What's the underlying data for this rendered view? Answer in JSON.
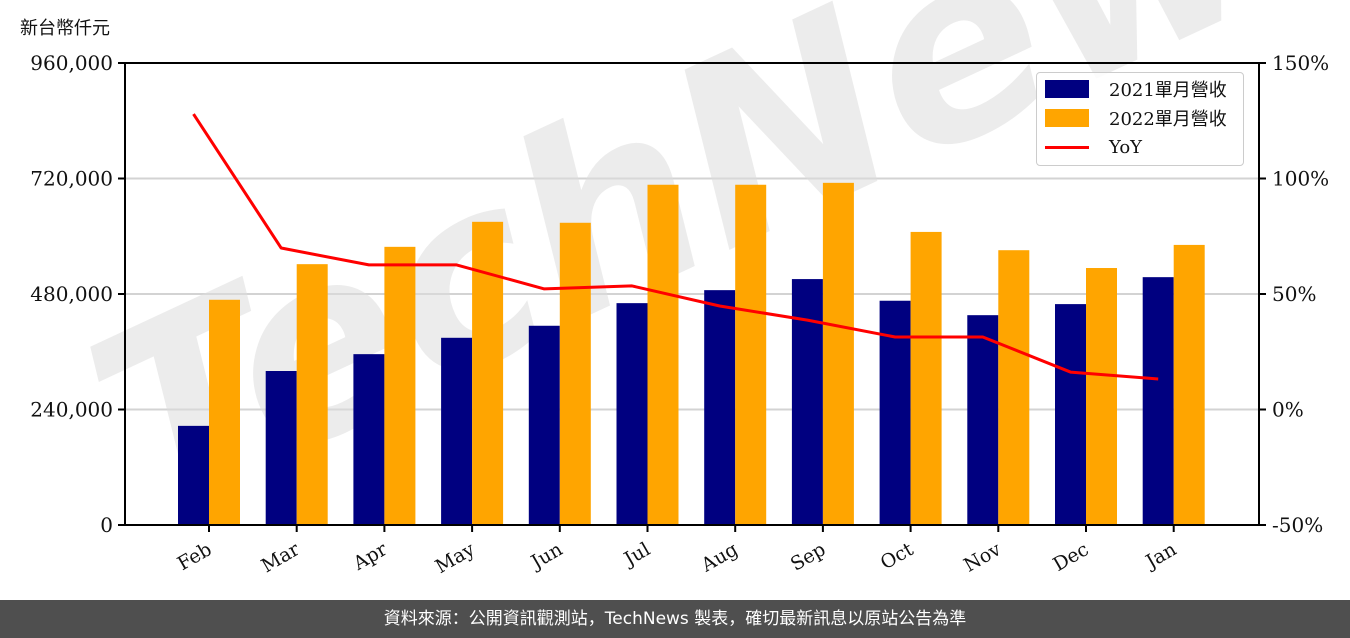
{
  "unit_label": "新台幣仟元",
  "footer": "資料來源：公開資訊觀測站，TechNews 製表，確切最新訊息以原站公告為準",
  "watermark": "TechNews",
  "legend": {
    "items": [
      {
        "label": "2021單月營收",
        "color": "#000080",
        "kind": "bar"
      },
      {
        "label": "2022單月營收",
        "color": "#FFA500",
        "kind": "bar"
      },
      {
        "label": "YoY",
        "color": "#FF0000",
        "kind": "line"
      }
    ]
  },
  "chart_data": {
    "type": "bar",
    "title": "",
    "xlabel": "",
    "ylabel": "新台幣仟元",
    "y2label": "",
    "categories": [
      "Feb",
      "Mar",
      "Apr",
      "May",
      "Jun",
      "Jul",
      "Aug",
      "Sep",
      "Oct",
      "Nov",
      "Dec",
      "Jan"
    ],
    "series": [
      {
        "name": "2021單月營收",
        "type": "bar",
        "axis": "left",
        "color": "#000080",
        "values": [
          206000,
          320000,
          355000,
          389000,
          414000,
          461000,
          488000,
          511000,
          466000,
          436000,
          459000,
          515000
        ]
      },
      {
        "name": "2022單月營收",
        "type": "bar",
        "axis": "left",
        "color": "#FFA500",
        "values": [
          468000,
          542000,
          578000,
          630000,
          628000,
          707000,
          707000,
          711000,
          609000,
          571000,
          534000,
          582000
        ]
      },
      {
        "name": "YoY",
        "type": "line",
        "axis": "right",
        "color": "#FF0000",
        "values": [
          127.9,
          69.9,
          62.6,
          62.6,
          52.2,
          53.5,
          44.8,
          38.7,
          31.4,
          31.4,
          16.2,
          13.2
        ]
      }
    ],
    "ylim": [
      0,
      960000
    ],
    "yticks": [
      0,
      240000,
      480000,
      720000,
      960000
    ],
    "ytick_labels": [
      "0",
      "240,000",
      "480,000",
      "720,000",
      "960,000"
    ],
    "y2lim": [
      -50,
      150
    ],
    "y2ticks": [
      -50,
      0,
      50,
      100,
      150
    ],
    "y2tick_labels": [
      "-50%",
      "0%",
      "50%",
      "100%",
      "150%"
    ],
    "grid": true,
    "legend_position": "upper right"
  }
}
